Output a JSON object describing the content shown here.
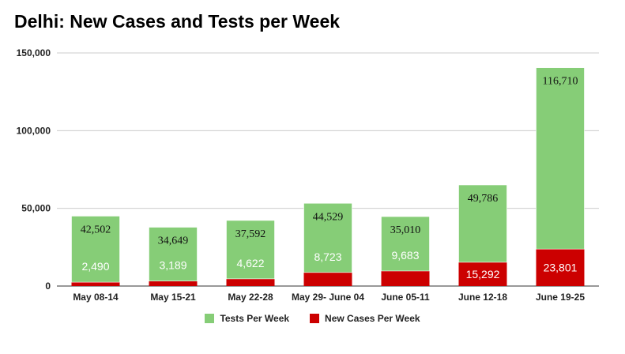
{
  "chart_data": {
    "type": "bar",
    "stacked": true,
    "title": "Delhi: New Cases and Tests per Week",
    "categories": [
      "May 08-14",
      "May 15-21",
      "May 22-28",
      "May 29- June 04",
      "June  05-11",
      "June 12-18",
      "June 19-25"
    ],
    "series": [
      {
        "name": "New Cases Per Week",
        "color": "#cc0000",
        "values": [
          2490,
          3189,
          4622,
          8723,
          9683,
          15292,
          23801
        ],
        "labels": [
          "2,490",
          "3,189",
          "4,622",
          "8,723",
          "9,683",
          "15,292",
          "23,801"
        ]
      },
      {
        "name": "Tests Per Week",
        "color": "#86cd77",
        "values": [
          42502,
          34649,
          37592,
          44529,
          35010,
          49786,
          116710
        ],
        "labels": [
          "42,502",
          "34,649",
          "37,592",
          "44,529",
          "35,010",
          "49,786",
          "116,710"
        ]
      }
    ],
    "legend_order": [
      1,
      0
    ],
    "ylim": [
      0,
      150000
    ],
    "yticks": [
      0,
      50000,
      100000,
      150000
    ],
    "ytick_labels": [
      "0",
      "50,000",
      "100,000",
      "150,000"
    ],
    "grid": true,
    "legend_position": "bottom",
    "xlabel": "",
    "ylabel": ""
  }
}
